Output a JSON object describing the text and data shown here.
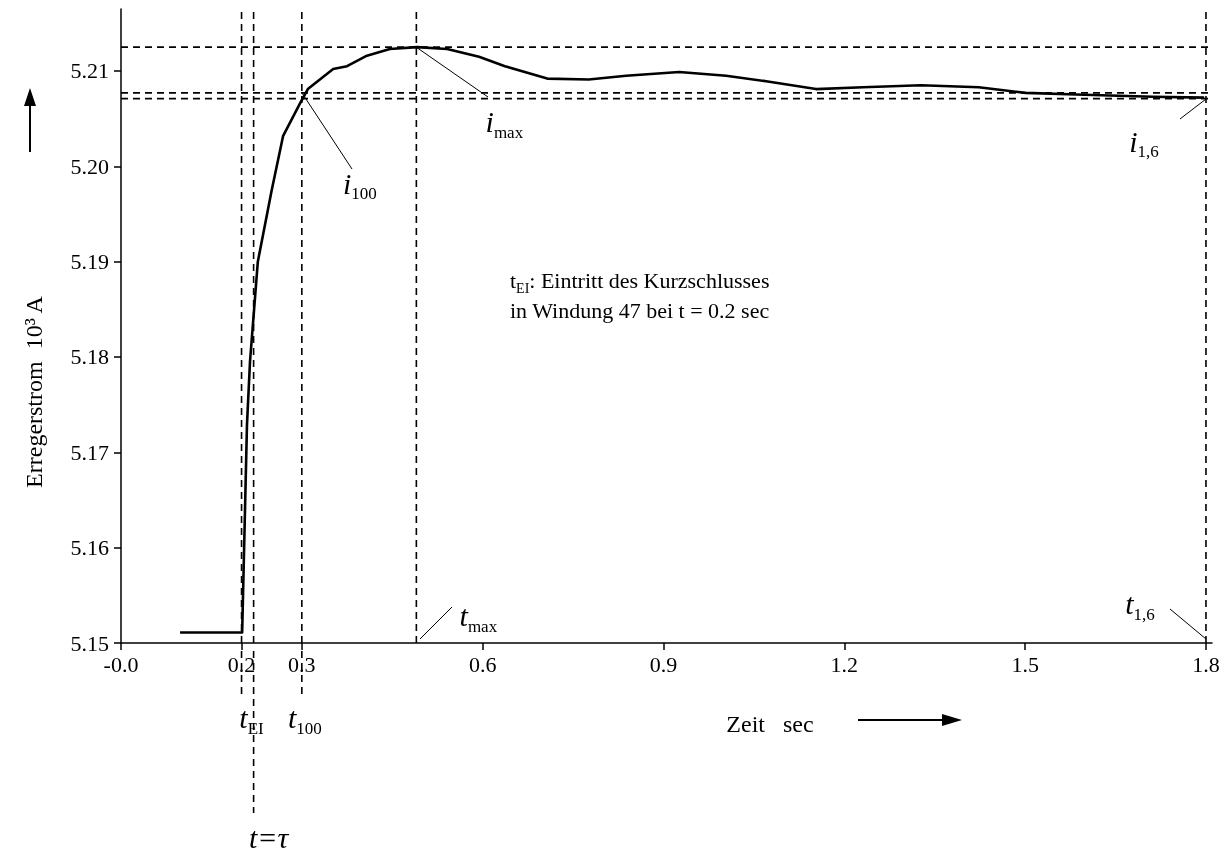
{
  "chart_data": {
    "type": "line",
    "xlabel": "Zeit   sec",
    "ylabel": "Erregerstrom  10³ A",
    "x": [
      0.098,
      0.201,
      0.209,
      0.214,
      0.227,
      0.25,
      0.269,
      0.297,
      0.31,
      0.352,
      0.375,
      0.408,
      0.446,
      0.491,
      0.541,
      0.594,
      0.637,
      0.707,
      0.776,
      0.838,
      0.926,
      1.004,
      1.073,
      1.153,
      1.231,
      1.327,
      1.423,
      1.501,
      1.598,
      1.712,
      1.797
    ],
    "series": [
      {
        "color": "#000000",
        "values": [
          5.1511,
          5.1511,
          5.1729,
          5.1795,
          5.19,
          5.1975,
          5.2032,
          5.2066,
          5.2081,
          5.2102,
          5.2105,
          5.2116,
          5.2123,
          5.2125,
          5.2123,
          5.2115,
          5.2105,
          5.2092,
          5.2091,
          5.2095,
          5.2099,
          5.2095,
          5.2089,
          5.2081,
          5.2083,
          5.2085,
          5.2083,
          5.2077,
          5.2075,
          5.2073,
          5.2072
        ]
      }
    ],
    "xlim": [
      0,
      1.81
    ],
    "xticks": [
      {
        "value": 0,
        "label": "-0.0"
      },
      0.2,
      0.3,
      0.6,
      0.9,
      1.2,
      1.5,
      1.8
    ],
    "ylim": [
      5.15,
      5.2165
    ],
    "yticks": [
      5.15,
      5.16,
      5.17,
      5.18,
      5.19,
      {
        "value": 5.2,
        "label": "5.20"
      },
      5.21
    ],
    "ref_lines": [
      {
        "axis": "x",
        "value": 0.2,
        "label": "t$_{EI}$",
        "color": "#000000",
        "line_style": "dashed"
      },
      {
        "axis": "x",
        "value": 0.22,
        "label": "t=τ",
        "color": "#000000",
        "line_style": "dashed"
      },
      {
        "axis": "x",
        "value": 0.3,
        "label": "t$_{100}$",
        "color": "#000000",
        "line_style": "dashed"
      },
      {
        "axis": "x",
        "value": 0.49,
        "label": "t$_{max}$",
        "color": "#000000",
        "line_style": "dashed"
      },
      {
        "axis": "x",
        "value": 1.8,
        "label": "t$_{1,6}$",
        "color": "#000000",
        "line_style": "dashed"
      },
      {
        "axis": "y",
        "value": 5.2125,
        "label": "i$_{max}$",
        "color": "#000000",
        "line_style": "dashed"
      },
      {
        "axis": "y",
        "value": 5.2077,
        "label": "i$_{100}$",
        "color": "#000000",
        "line_style": "dashed"
      },
      {
        "axis": "y",
        "value": 5.2071,
        "label": "i$_{1,6}$",
        "color": "#000000",
        "line_style": "dashed"
      }
    ],
    "annotations": [
      "t$_{EI}$: Eintritt des Kurzschlusses\nin Windung 47 bei t = 0.2 sec"
    ],
    "grid": false,
    "line_style": "solid"
  }
}
